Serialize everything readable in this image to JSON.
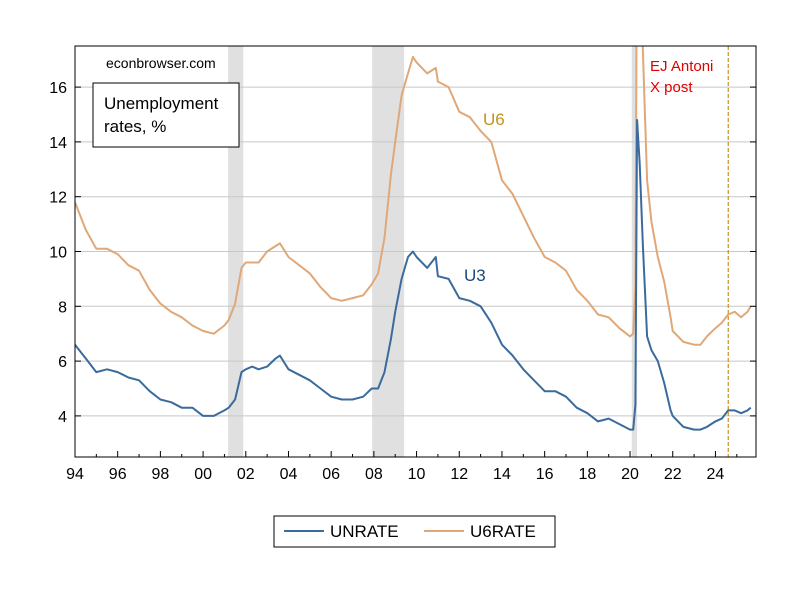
{
  "chart_data": {
    "type": "line",
    "source_label": "econbrowser.com",
    "box_title": [
      "Unemployment",
      "rates, %"
    ],
    "annotation": [
      "EJ Antoni",
      "X post"
    ],
    "series_labels": {
      "u6": "U6",
      "u3": "U3"
    },
    "x_tick_labels": [
      "94",
      "96",
      "98",
      "00",
      "02",
      "04",
      "06",
      "08",
      "10",
      "12",
      "14",
      "16",
      "18",
      "20",
      "22",
      "24"
    ],
    "x_tick_years": [
      1994,
      1996,
      1998,
      2000,
      2002,
      2004,
      2006,
      2008,
      2010,
      2012,
      2014,
      2016,
      2018,
      2020,
      2022,
      2024
    ],
    "y_ticks": [
      4,
      6,
      8,
      10,
      12,
      14,
      16
    ],
    "xlim": [
      1994.0,
      2025.9
    ],
    "ylim": [
      2.5,
      17.5
    ],
    "grid": "horizontal",
    "legend_position": "bottom-center",
    "recessions": [
      [
        2001.17,
        2001.88
      ],
      [
        2007.92,
        2009.42
      ],
      [
        2020.08,
        2020.33
      ]
    ],
    "vline_x": 2024.6,
    "colors": {
      "u3": "#3b6b9c",
      "u6": "#e0a878",
      "recession": "#e0e0e0",
      "annotation": "#e00000",
      "u6_label": "#c8901e",
      "u3_label": "#1a4a7a",
      "vline": "#c8901e"
    },
    "series": [
      {
        "name": "UNRATE",
        "key": "u3",
        "x": [
          1994.0,
          1994.5,
          1995.0,
          1995.5,
          1996.0,
          1996.5,
          1997.0,
          1997.5,
          1998.0,
          1998.5,
          1999.0,
          1999.5,
          2000.0,
          2000.5,
          2001.0,
          2001.2,
          2001.5,
          2001.8,
          2002.0,
          2002.3,
          2002.6,
          2003.0,
          2003.4,
          2003.6,
          2004.0,
          2004.5,
          2005.0,
          2005.5,
          2006.0,
          2006.5,
          2007.0,
          2007.5,
          2007.9,
          2008.2,
          2008.5,
          2008.8,
          2009.0,
          2009.3,
          2009.6,
          2009.83,
          2010.0,
          2010.5,
          2010.9,
          2011.0,
          2011.5,
          2012.0,
          2012.5,
          2013.0,
          2013.5,
          2014.0,
          2014.5,
          2015.0,
          2015.5,
          2016.0,
          2016.5,
          2017.0,
          2017.5,
          2018.0,
          2018.5,
          2019.0,
          2019.5,
          2020.0,
          2020.15,
          2020.25,
          2020.33,
          2020.45,
          2020.6,
          2020.8,
          2021.0,
          2021.3,
          2021.6,
          2021.9,
          2022.0,
          2022.5,
          2023.0,
          2023.3,
          2023.6,
          2024.0,
          2024.3,
          2024.6,
          2024.9,
          2025.2,
          2025.5,
          2025.65
        ],
        "values": [
          6.6,
          6.1,
          5.6,
          5.7,
          5.6,
          5.4,
          5.3,
          4.9,
          4.6,
          4.5,
          4.3,
          4.3,
          4.0,
          4.0,
          4.2,
          4.3,
          4.6,
          5.6,
          5.7,
          5.8,
          5.7,
          5.8,
          6.1,
          6.2,
          5.7,
          5.5,
          5.3,
          5.0,
          4.7,
          4.6,
          4.6,
          4.7,
          5.0,
          5.0,
          5.6,
          6.8,
          7.8,
          9.0,
          9.8,
          10.0,
          9.8,
          9.4,
          9.8,
          9.1,
          9.0,
          8.3,
          8.2,
          8.0,
          7.4,
          6.6,
          6.2,
          5.7,
          5.3,
          4.9,
          4.9,
          4.7,
          4.3,
          4.1,
          3.8,
          3.9,
          3.7,
          3.5,
          3.5,
          4.4,
          14.8,
          13.2,
          10.2,
          6.9,
          6.4,
          6.0,
          5.2,
          4.2,
          4.0,
          3.6,
          3.5,
          3.5,
          3.6,
          3.8,
          3.9,
          4.2,
          4.2,
          4.1,
          4.2,
          4.3
        ]
      },
      {
        "name": "U6RATE",
        "key": "u6",
        "x": [
          1994.0,
          1994.5,
          1995.0,
          1995.5,
          1996.0,
          1996.5,
          1997.0,
          1997.5,
          1998.0,
          1998.5,
          1999.0,
          1999.5,
          2000.0,
          2000.5,
          2001.0,
          2001.2,
          2001.5,
          2001.8,
          2002.0,
          2002.3,
          2002.6,
          2003.0,
          2003.4,
          2003.6,
          2004.0,
          2004.5,
          2005.0,
          2005.5,
          2006.0,
          2006.5,
          2007.0,
          2007.5,
          2007.9,
          2008.2,
          2008.5,
          2008.8,
          2009.0,
          2009.3,
          2009.6,
          2009.83,
          2010.0,
          2010.5,
          2010.9,
          2011.0,
          2011.5,
          2012.0,
          2012.5,
          2013.0,
          2013.5,
          2014.0,
          2014.5,
          2015.0,
          2015.5,
          2016.0,
          2016.5,
          2017.0,
          2017.5,
          2018.0,
          2018.5,
          2019.0,
          2019.5,
          2020.0,
          2020.15,
          2020.25,
          2020.33,
          2020.45,
          2020.6,
          2020.8,
          2021.0,
          2021.3,
          2021.6,
          2021.9,
          2022.0,
          2022.5,
          2023.0,
          2023.3,
          2023.6,
          2024.0,
          2024.3,
          2024.6,
          2024.9,
          2025.2,
          2025.5,
          2025.65
        ],
        "values": [
          11.8,
          10.8,
          10.1,
          10.1,
          9.9,
          9.5,
          9.3,
          8.6,
          8.1,
          7.8,
          7.6,
          7.3,
          7.1,
          7.0,
          7.3,
          7.5,
          8.1,
          9.4,
          9.6,
          9.6,
          9.6,
          10.0,
          10.2,
          10.3,
          9.8,
          9.5,
          9.2,
          8.7,
          8.3,
          8.2,
          8.3,
          8.4,
          8.8,
          9.2,
          10.5,
          12.8,
          14.0,
          15.7,
          16.5,
          17.1,
          16.9,
          16.5,
          16.7,
          16.2,
          16.0,
          15.1,
          14.9,
          14.4,
          14.0,
          12.6,
          12.1,
          11.3,
          10.5,
          9.8,
          9.6,
          9.3,
          8.6,
          8.2,
          7.7,
          7.6,
          7.2,
          6.9,
          7.0,
          8.7,
          22.8,
          21.2,
          17.3,
          12.6,
          11.1,
          9.8,
          8.9,
          7.6,
          7.1,
          6.7,
          6.6,
          6.6,
          6.9,
          7.2,
          7.4,
          7.7,
          7.8,
          7.6,
          7.8,
          8.0
        ]
      }
    ]
  }
}
